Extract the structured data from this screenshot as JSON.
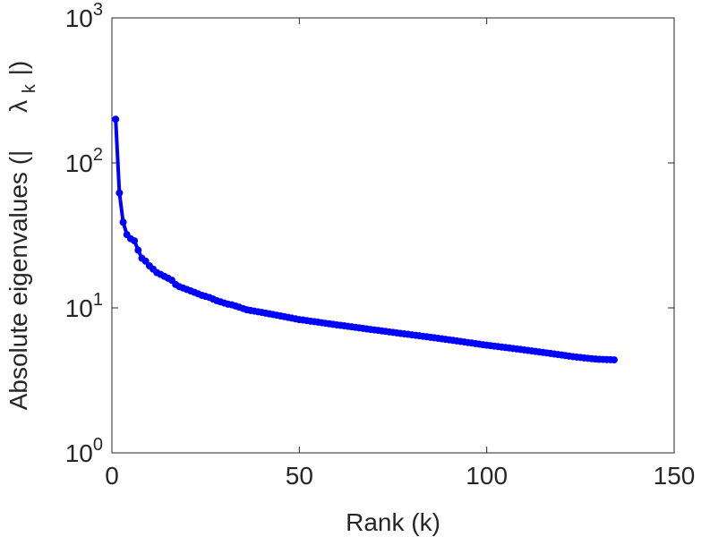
{
  "chart_data": {
    "type": "line",
    "xlabel": "Rank (k)",
    "ylabel": "Absolute eigenvalues (|     λ_k |)",
    "ylabel_parts": {
      "prefix": "Absolute eigenvalues (|",
      "symbol": "λ",
      "subscript": "k",
      "suffix": "|)"
    },
    "xlim": [
      0,
      150
    ],
    "ylim": [
      1,
      1000
    ],
    "yscale": "log",
    "grid": false,
    "xticks": [
      0,
      50,
      100,
      150
    ],
    "xtick_labels": [
      "0",
      "50",
      "100",
      "150"
    ],
    "yticks": [
      1,
      10,
      100,
      1000
    ],
    "ytick_labels": [
      {
        "base": "10",
        "exp": "0"
      },
      {
        "base": "10",
        "exp": "1"
      },
      {
        "base": "10",
        "exp": "2"
      },
      {
        "base": "10",
        "exp": "3"
      }
    ],
    "series": [
      {
        "color": "#0000ff",
        "marker": "circle",
        "x": [
          1,
          2,
          3,
          4,
          5,
          6,
          7,
          8,
          9,
          10,
          11,
          12,
          13,
          14,
          15,
          16,
          17,
          18,
          19,
          20,
          21,
          22,
          23,
          24,
          25,
          26,
          27,
          28,
          29,
          30,
          31,
          32,
          33,
          34,
          35,
          36,
          37,
          38,
          39,
          40,
          41,
          42,
          43,
          44,
          45,
          46,
          47,
          48,
          49,
          50,
          51,
          52,
          53,
          54,
          55,
          56,
          57,
          58,
          59,
          60,
          61,
          62,
          63,
          64,
          65,
          66,
          67,
          68,
          69,
          70,
          71,
          72,
          73,
          74,
          75,
          76,
          77,
          78,
          79,
          80,
          81,
          82,
          83,
          84,
          85,
          86,
          87,
          88,
          89,
          90,
          91,
          92,
          93,
          94,
          95,
          96,
          97,
          98,
          99,
          100,
          101,
          102,
          103,
          104,
          105,
          106,
          107,
          108,
          109,
          110,
          111,
          112,
          113,
          114,
          115,
          116,
          117,
          118,
          119,
          120,
          121,
          122,
          123,
          124,
          125,
          126,
          127,
          128,
          129,
          130,
          131,
          132,
          133,
          134
        ],
        "y": [
          200,
          62,
          39,
          32,
          30,
          29,
          25,
          22,
          21,
          19.5,
          18.5,
          17.5,
          17,
          16.5,
          16,
          15.5,
          14.5,
          14,
          13.7,
          13.4,
          13.1,
          12.8,
          12.5,
          12.2,
          12,
          11.8,
          11.5,
          11.2,
          11,
          10.8,
          10.6,
          10.5,
          10.3,
          10.1,
          9.9,
          9.7,
          9.6,
          9.5,
          9.4,
          9.3,
          9.2,
          9.1,
          9.0,
          8.9,
          8.8,
          8.7,
          8.6,
          8.5,
          8.4,
          8.3,
          8.25,
          8.17,
          8.1,
          8.03,
          7.97,
          7.9,
          7.83,
          7.77,
          7.7,
          7.64,
          7.58,
          7.52,
          7.46,
          7.4,
          7.34,
          7.28,
          7.22,
          7.16,
          7.1,
          7.05,
          7.0,
          6.94,
          6.88,
          6.83,
          6.78,
          6.72,
          6.67,
          6.62,
          6.57,
          6.52,
          6.47,
          6.42,
          6.37,
          6.32,
          6.27,
          6.22,
          6.17,
          6.12,
          6.07,
          6.02,
          5.97,
          5.92,
          5.87,
          5.82,
          5.77,
          5.72,
          5.67,
          5.62,
          5.57,
          5.53,
          5.49,
          5.45,
          5.41,
          5.37,
          5.33,
          5.29,
          5.25,
          5.21,
          5.17,
          5.13,
          5.09,
          5.05,
          5.01,
          4.97,
          4.93,
          4.89,
          4.85,
          4.81,
          4.77,
          4.73,
          4.69,
          4.65,
          4.61,
          4.58,
          4.55,
          4.52,
          4.49,
          4.46,
          4.44,
          4.42,
          4.41,
          4.4,
          4.39,
          4.38
        ]
      }
    ]
  }
}
